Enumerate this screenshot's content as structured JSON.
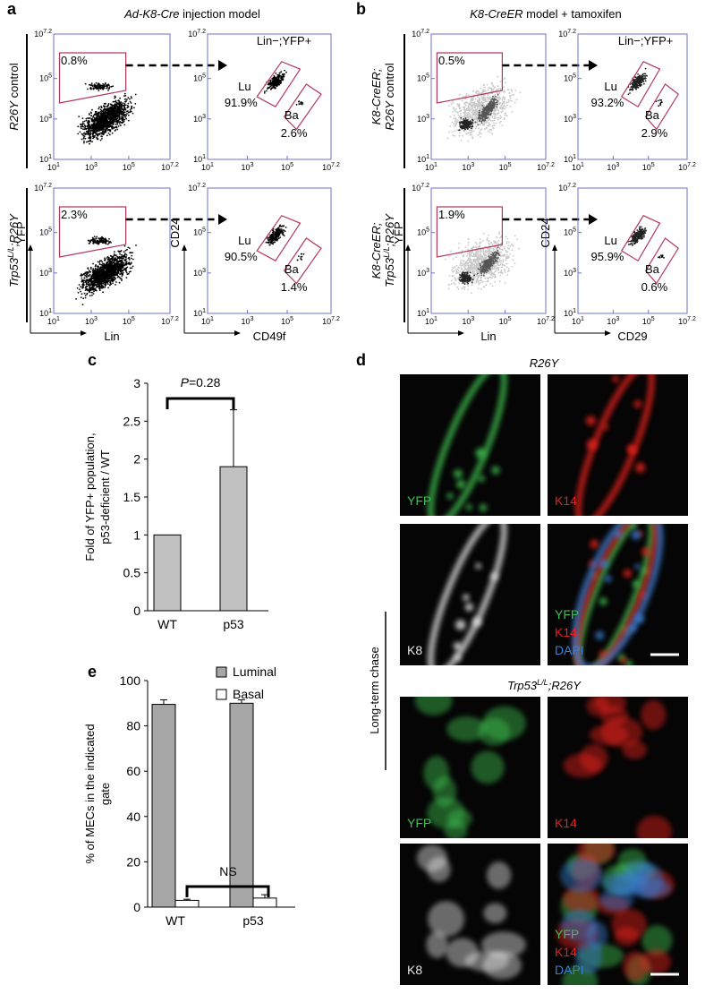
{
  "panels": {
    "a": "a",
    "b": "b",
    "c": "c",
    "d": "d",
    "e": "e"
  },
  "flow_ticks": {
    "base": "10",
    "exps": [
      "1",
      "3",
      "5",
      "7.2"
    ]
  },
  "panel_a": {
    "title": [
      {
        "text": "Ad-K8-Cre",
        "italic": true
      },
      {
        "text": " injection model"
      }
    ],
    "gate_header": "Lin−;YFP+",
    "rows": [
      {
        "label": [
          [
            {
              "text": "R26Y",
              "italic": true
            },
            {
              "text": " control"
            }
          ]
        ],
        "lin_gate": "0.8%",
        "lu": "Lu",
        "lu_pct": "91.9%",
        "ba": "Ba",
        "ba_pct": "2.6%"
      },
      {
        "label": [
          [
            {
              "text": "Trp53",
              "italic": true
            },
            {
              "text": "L/L",
              "italic": true,
              "sup": true
            },
            {
              "text": ";R26Y",
              "italic": true
            }
          ]
        ],
        "lin_gate": "2.3%",
        "lu": "Lu",
        "lu_pct": "90.5%",
        "ba": "Ba",
        "ba_pct": "1.4%"
      }
    ],
    "axes": {
      "y_left": "YFP",
      "x_left": "Lin",
      "y_right": "CD24",
      "x_right": "CD49f"
    }
  },
  "panel_b": {
    "title": [
      {
        "text": "K8-CreER",
        "italic": true
      },
      {
        "text": " model + tamoxifen"
      }
    ],
    "gate_header": "Lin−;YFP+",
    "rows": [
      {
        "label": [
          [
            {
              "text": "K8-CreER;",
              "italic": true
            }
          ],
          [
            {
              "text": "R26Y",
              "italic": true
            },
            {
              "text": " control"
            }
          ]
        ],
        "lin_gate": "0.5%",
        "lu": "Lu",
        "lu_pct": "93.2%",
        "ba": "Ba",
        "ba_pct": "2.9%"
      },
      {
        "label": [
          [
            {
              "text": "K8-CreER;",
              "italic": true
            }
          ],
          [
            {
              "text": "Trp53",
              "italic": true
            },
            {
              "text": "L/L",
              "italic": true,
              "sup": true
            },
            {
              "text": ";R26Y",
              "italic": true
            }
          ]
        ],
        "lin_gate": "1.9%",
        "lu": "Lu",
        "lu_pct": "95.9%",
        "ba": "Ba",
        "ba_pct": "0.6%"
      }
    ],
    "axes": {
      "y_left": "YFP",
      "x_left": "Lin",
      "y_right": "CD24",
      "x_right": "CD29"
    }
  },
  "chart_data": [
    {
      "type": "bar",
      "ylabel": [
        "Fold of YFP+ population,",
        "p53-deficient / WT"
      ],
      "categories": [
        "WT",
        "p53"
      ],
      "values": [
        1,
        1.9
      ],
      "errors": [
        null,
        0.75
      ],
      "color": "#c0c0c0",
      "ylim": [
        0,
        3
      ],
      "yticks": [
        0,
        0.5,
        1,
        1.5,
        2,
        2.5,
        3
      ],
      "annotation": [
        {
          "text": "P",
          "italic": true
        },
        {
          "text": "=0.28"
        }
      ]
    },
    {
      "type": "bar",
      "ylabel": [
        "% of MECs in the indicated",
        "gate"
      ],
      "categories": [
        "WT",
        "p53"
      ],
      "series": [
        {
          "name": "Luminal",
          "color": "#a6a6a6",
          "values": [
            89.5,
            90
          ],
          "errors": [
            2,
            1.5
          ]
        },
        {
          "name": "Basal",
          "color": "#ffffff",
          "values": [
            3,
            4
          ],
          "errors": [
            0.5,
            1.5
          ]
        }
      ],
      "ylim": [
        0,
        100
      ],
      "yticks": [
        0,
        20,
        40,
        60,
        80,
        100
      ],
      "legend": "top-right",
      "annotation": [
        {
          "text": "NS"
        }
      ]
    }
  ],
  "panel_d": {
    "side_label": "Long-term chase",
    "groups": [
      {
        "title": [
          {
            "text": "R26Y",
            "italic": true
          }
        ],
        "tiles": [
          {
            "labels": [
              "YFP"
            ],
            "colors": [
              "#3fbf4f"
            ]
          },
          {
            "labels": [
              "K14"
            ],
            "colors": [
              "#e8211e"
            ]
          },
          {
            "labels": [
              "K8"
            ],
            "colors": [
              "#e6e6e6"
            ]
          },
          {
            "labels": [
              "YFP",
              "K14",
              "DAPI"
            ],
            "colors": [
              "#3fbf4f",
              "#e8211e",
              "#3a7fd5"
            ]
          }
        ]
      },
      {
        "title": [
          {
            "text": "Trp53",
            "italic": true
          },
          {
            "text": "L/L",
            "italic": true,
            "sup": true
          },
          {
            "text": ";R26Y",
            "italic": true
          }
        ],
        "tiles": [
          {
            "labels": [
              "YFP"
            ],
            "colors": [
              "#3fbf4f"
            ]
          },
          {
            "labels": [
              "K14"
            ],
            "colors": [
              "#e8211e"
            ]
          },
          {
            "labels": [
              "K8"
            ],
            "colors": [
              "#e6e6e6"
            ]
          },
          {
            "labels": [
              "YFP",
              "K14",
              "DAPI"
            ],
            "colors": [
              "#3fbf4f",
              "#e8211e",
              "#3a7fd5"
            ]
          }
        ]
      }
    ]
  }
}
